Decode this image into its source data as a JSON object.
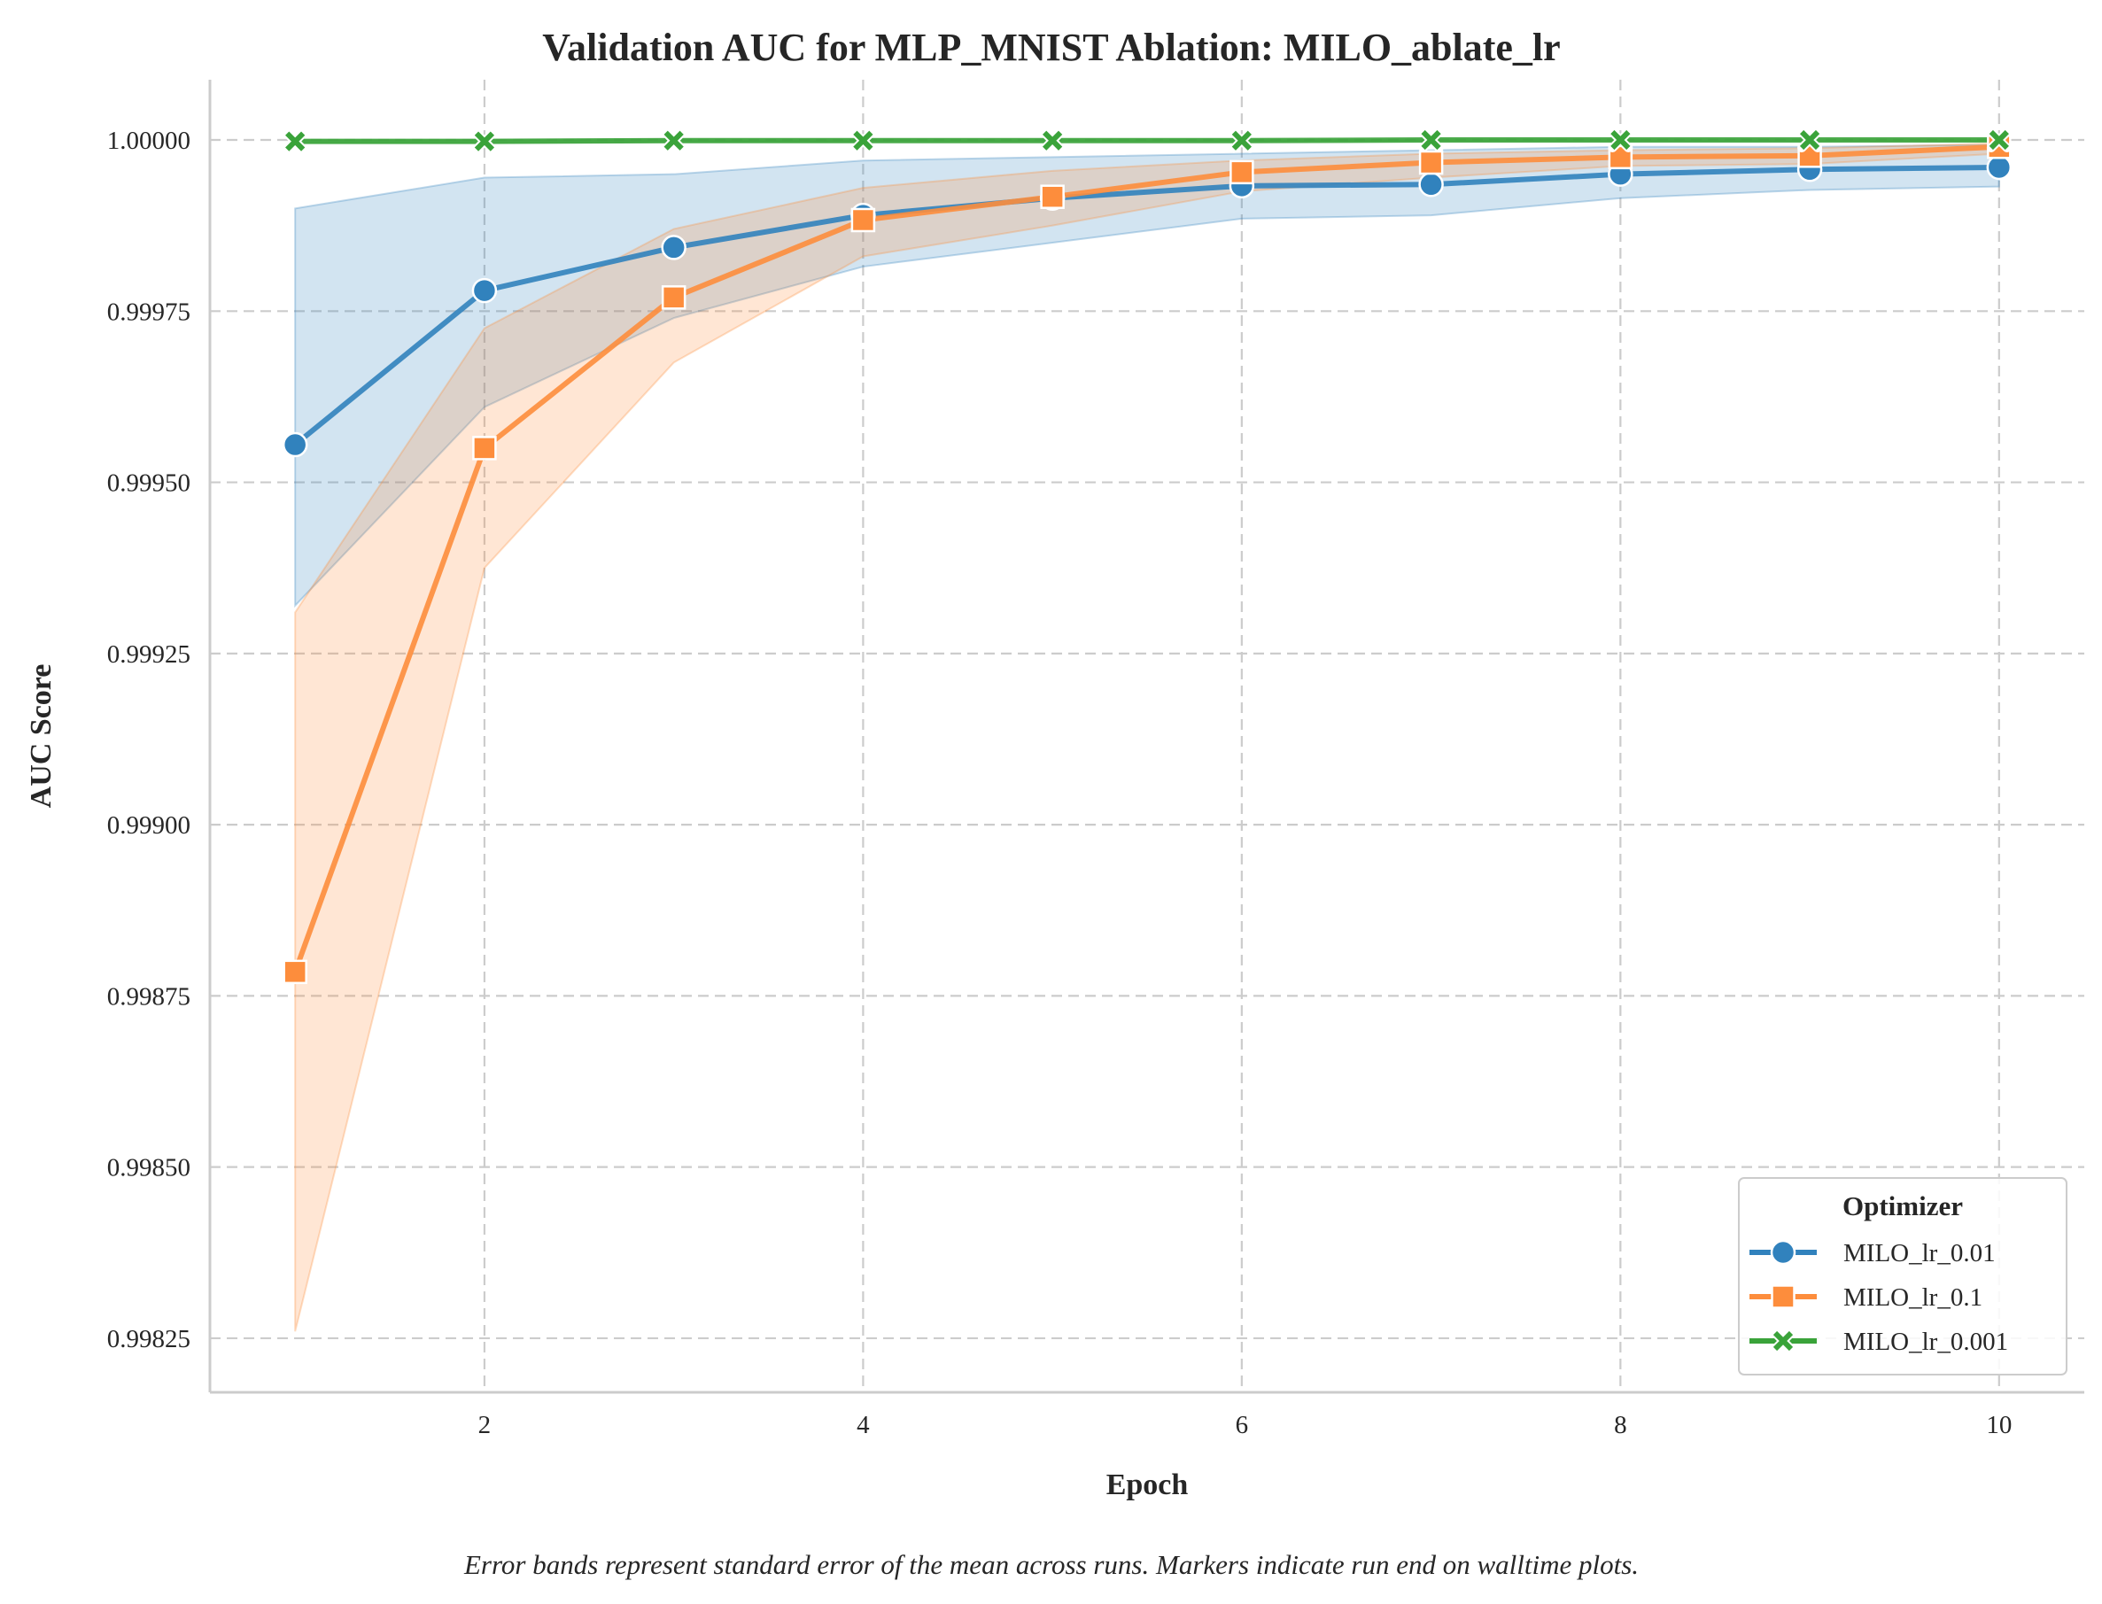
{
  "chart_data": {
    "type": "line",
    "title": "Validation AUC for MLP_MNIST Ablation: MILO_ablate_lr",
    "xlabel": "Epoch",
    "ylabel": "AUC Score",
    "caption": "Error bands represent standard error of the mean across runs. Markers indicate run end on walltime plots.",
    "xlim": [
      0.55,
      10.45
    ],
    "ylim": [
      0.998171,
      1.000088
    ],
    "xticks": [
      2,
      4,
      6,
      8,
      10
    ],
    "xtick_labels": [
      "2",
      "4",
      "6",
      "8",
      "10"
    ],
    "yticks": [
      0.99825,
      0.9985,
      0.99875,
      0.999,
      0.99925,
      0.9995,
      0.99975,
      1.0
    ],
    "ytick_labels": [
      "0.99825",
      "0.99850",
      "0.99875",
      "0.99900",
      "0.99925",
      "0.99950",
      "0.99975",
      "1.00000"
    ],
    "grid": true,
    "legend": {
      "title": "Optimizer",
      "placement": "lower-right"
    },
    "x": [
      1,
      2,
      3,
      4,
      5,
      6,
      7,
      8,
      9,
      10
    ],
    "series": [
      {
        "name": "MILO_lr_0.01",
        "color": "#3182bd",
        "marker": "circle",
        "values": [
          0.999555,
          0.99978,
          0.999843,
          0.99989,
          0.999915,
          0.999933,
          0.999935,
          0.99995,
          0.999957,
          0.99996
        ],
        "band_low": [
          0.99932,
          0.99961,
          0.99974,
          0.999815,
          0.99985,
          0.999885,
          0.99989,
          0.999915,
          0.999927,
          0.999932
        ],
        "band_high": [
          0.9999,
          0.999945,
          0.99995,
          0.99997,
          0.999975,
          0.99998,
          0.999985,
          0.99999,
          0.99999,
          0.999993
        ]
      },
      {
        "name": "MILO_lr_0.1",
        "color": "#fd8d3c",
        "marker": "square",
        "values": [
          0.998785,
          0.99955,
          0.99977,
          0.999883,
          0.999917,
          0.999953,
          0.999967,
          0.999975,
          0.999977,
          0.99999
        ],
        "band_low": [
          0.99826,
          0.999375,
          0.999675,
          0.99983,
          0.999875,
          0.999925,
          0.999945,
          0.999962,
          0.999965,
          0.99998
        ],
        "band_high": [
          0.99931,
          0.999725,
          0.99987,
          0.99993,
          0.999955,
          0.99997,
          0.99998,
          0.999985,
          0.999988,
          0.999995
        ]
      },
      {
        "name": "MILO_lr_0.001",
        "color": "#3aa33a",
        "marker": "x",
        "values": [
          0.999998,
          0.999998,
          0.999999,
          0.999999,
          0.999999,
          0.999999,
          1.0,
          1.0,
          1.0,
          1.0
        ],
        "band_low": [
          0.999996,
          0.999996,
          0.999997,
          0.999998,
          0.999998,
          0.999998,
          0.999999,
          0.999999,
          0.999999,
          0.999999
        ],
        "band_high": [
          1.0,
          1.0,
          1.0,
          1.0,
          1.0,
          1.0,
          1.0,
          1.0,
          1.0,
          1.0
        ]
      }
    ]
  }
}
